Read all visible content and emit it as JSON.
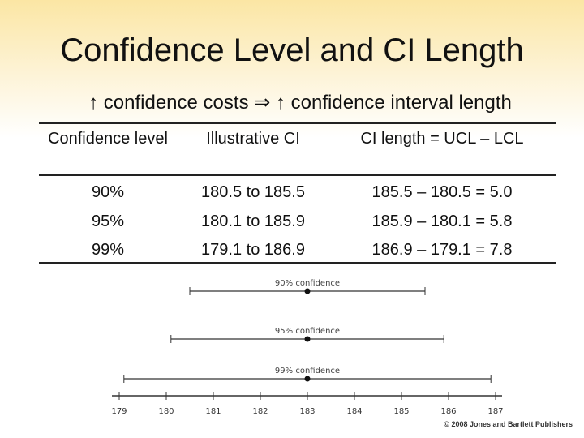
{
  "title": "Confidence Level and CI Length",
  "subtitle": "↑ confidence costs ⇒ ↑ confidence interval length",
  "table": {
    "header": [
      "Confidence level",
      "Illustrative CI",
      "CI length = UCL – LCL"
    ],
    "rows": [
      [
        "90%",
        "180.5 to 185.5",
        "185.5 – 180.5 = 5.0"
      ],
      [
        "95%",
        "180.1 to 185.9",
        "185.9 – 180.1 = 5.8"
      ],
      [
        "99%",
        "179.1 to 186.9",
        "186.9 – 179.1 = 7.8"
      ]
    ]
  },
  "diagram": {
    "center": 183,
    "intervals": [
      {
        "label": "90% confidence",
        "low": 180.5,
        "high": 185.5
      },
      {
        "label": "95% confidence",
        "low": 180.1,
        "high": 185.9
      },
      {
        "label": "99% confidence",
        "low": 179.1,
        "high": 186.9
      }
    ],
    "ticks": [
      179,
      180,
      181,
      182,
      183,
      184,
      185,
      186,
      187
    ]
  },
  "footer": "© 2008 Jones and Bartlett Publishers"
}
